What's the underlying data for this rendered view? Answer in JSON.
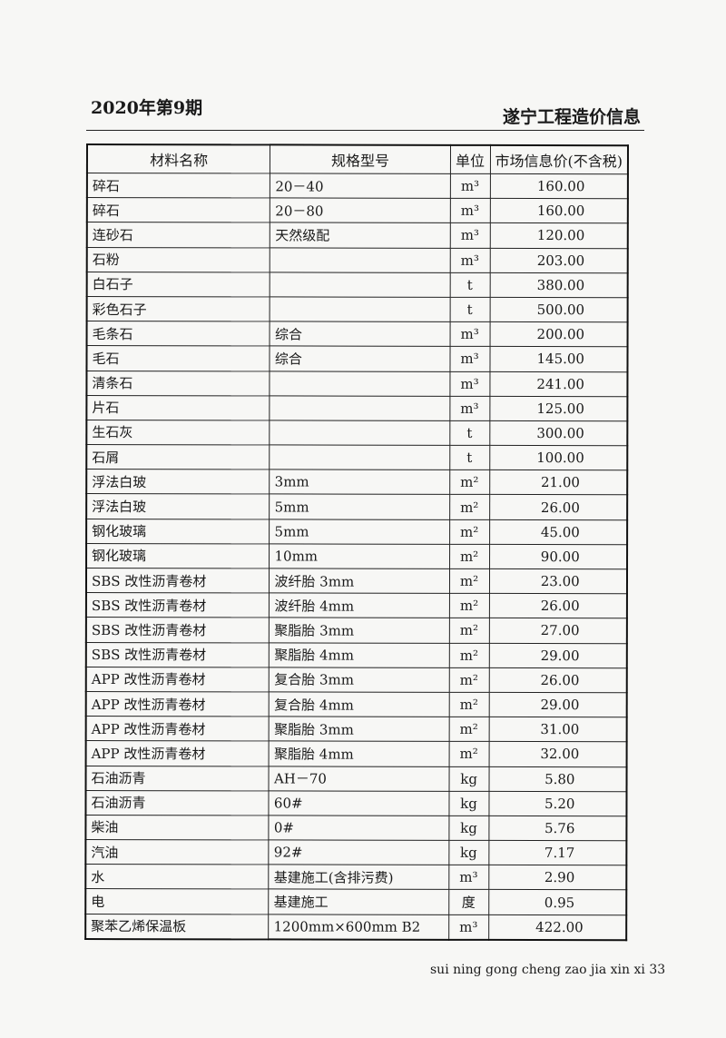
{
  "header": {
    "issue": "2020年第9期",
    "publication": "遂宁工程造价信息"
  },
  "table": {
    "columns": [
      "材料名称",
      "规格型号",
      "单位",
      "市场信息价(不含税)"
    ],
    "rows": [
      [
        "碎石",
        "20－40",
        "m³",
        "160.00"
      ],
      [
        "碎石",
        "20－80",
        "m³",
        "160.00"
      ],
      [
        "连砂石",
        "天然级配",
        "m³",
        "120.00"
      ],
      [
        "石粉",
        "",
        "m³",
        "203.00"
      ],
      [
        "白石子",
        "",
        "t",
        "380.00"
      ],
      [
        "彩色石子",
        "",
        "t",
        "500.00"
      ],
      [
        "毛条石",
        "综合",
        "m³",
        "200.00"
      ],
      [
        "毛石",
        "综合",
        "m³",
        "145.00"
      ],
      [
        "清条石",
        "",
        "m³",
        "241.00"
      ],
      [
        "片石",
        "",
        "m³",
        "125.00"
      ],
      [
        "生石灰",
        "",
        "t",
        "300.00"
      ],
      [
        "石屑",
        "",
        "t",
        "100.00"
      ],
      [
        "浮法白玻",
        "3mm",
        "m²",
        "21.00"
      ],
      [
        "浮法白玻",
        "5mm",
        "m²",
        "26.00"
      ],
      [
        "钢化玻璃",
        "5mm",
        "m²",
        "45.00"
      ],
      [
        "钢化玻璃",
        "10mm",
        "m²",
        "90.00"
      ],
      [
        "SBS 改性沥青卷材",
        "波纤胎 3mm",
        "m²",
        "23.00"
      ],
      [
        "SBS 改性沥青卷材",
        "波纤胎 4mm",
        "m²",
        "26.00"
      ],
      [
        "SBS 改性沥青卷材",
        "聚脂胎 3mm",
        "m²",
        "27.00"
      ],
      [
        "SBS 改性沥青卷材",
        "聚脂胎 4mm",
        "m²",
        "29.00"
      ],
      [
        "APP 改性沥青卷材",
        "复合胎 3mm",
        "m²",
        "26.00"
      ],
      [
        "APP 改性沥青卷材",
        "复合胎 4mm",
        "m²",
        "29.00"
      ],
      [
        "APP 改性沥青卷材",
        "聚脂胎 3mm",
        "m²",
        "31.00"
      ],
      [
        "APP 改性沥青卷材",
        "聚脂胎 4mm",
        "m²",
        "32.00"
      ],
      [
        "石油沥青",
        "AH－70",
        "kg",
        "5.80"
      ],
      [
        "石油沥青",
        "60#",
        "kg",
        "5.20"
      ],
      [
        "柴油",
        "0#",
        "kg",
        "5.76"
      ],
      [
        "汽油",
        "92#",
        "kg",
        "7.17"
      ],
      [
        "水",
        "基建施工(含排污费)",
        "m³",
        "2.90"
      ],
      [
        "电",
        "基建施工",
        "度",
        "0.95"
      ],
      [
        "聚苯乙烯保温板",
        "1200mm×600mm B2",
        "m³",
        "422.00"
      ]
    ]
  },
  "footer": {
    "page_text": "sui ning gong cheng zao jia xin xi 33"
  }
}
